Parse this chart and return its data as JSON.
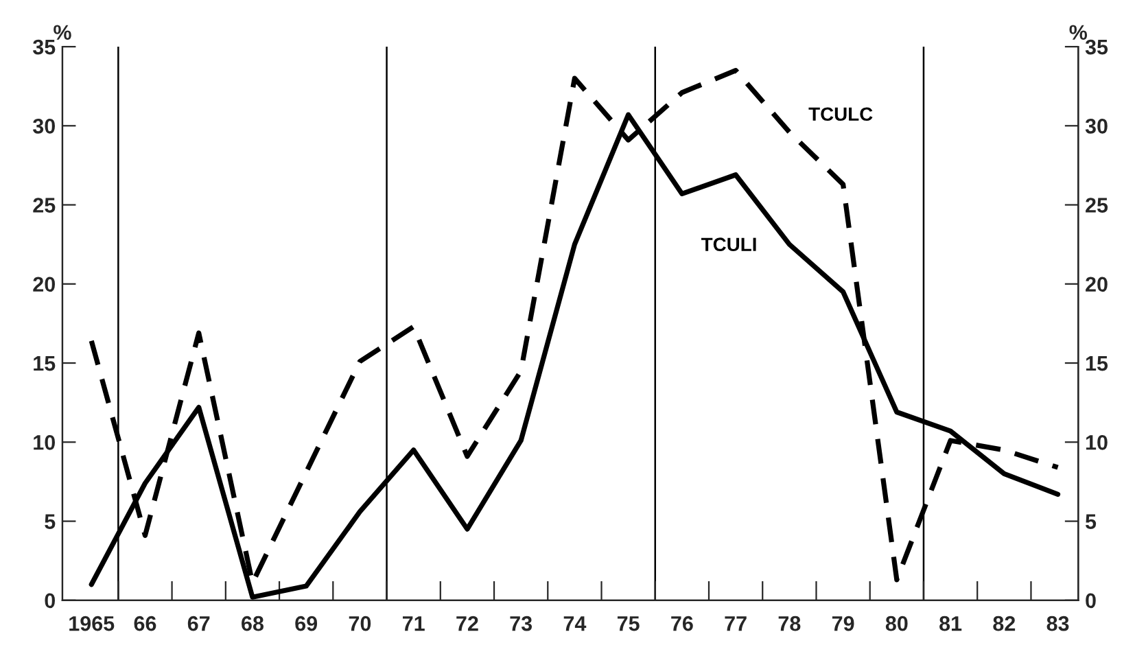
{
  "chart_data": {
    "type": "line",
    "ylabel": "%",
    "y2label": "%",
    "x": [
      1965,
      1966,
      1967,
      1968,
      1969,
      1970,
      1971,
      1972,
      1973,
      1974,
      1975,
      1976,
      1977,
      1978,
      1979,
      1980,
      1981,
      1982,
      1983
    ],
    "series": [
      {
        "name": "TCULI",
        "color": "#000000",
        "line_style": "solid",
        "values": [
          1.0,
          7.4,
          12.2,
          0.2,
          0.9,
          5.6,
          9.5,
          4.5,
          10.1,
          22.5,
          30.7,
          25.7,
          26.9,
          22.5,
          19.5,
          11.9,
          10.7,
          8.0,
          6.7
        ]
      },
      {
        "name": "TCULC",
        "color": "#000000",
        "line_style": "dashed",
        "values": [
          16.4,
          4.1,
          16.9,
          1.1,
          8.1,
          15.1,
          17.3,
          9.1,
          14.5,
          33.0,
          29.1,
          32.1,
          33.5,
          29.6,
          26.3,
          1.3,
          10.1,
          9.5,
          8.4
        ]
      }
    ],
    "xlim": [
      1964.46,
      1983.38
    ],
    "xticks": [
      {
        "value": 1965,
        "label": "1965"
      },
      {
        "value": 1965.5,
        "label": null
      },
      {
        "value": 1966,
        "label": "66"
      },
      {
        "value": 1966.5,
        "label": null
      },
      {
        "value": 1967,
        "label": "67"
      },
      {
        "value": 1967.5,
        "label": null
      },
      {
        "value": 1968,
        "label": "68"
      },
      {
        "value": 1968.5,
        "label": null
      },
      {
        "value": 1969,
        "label": "69"
      },
      {
        "value": 1969.5,
        "label": null
      },
      {
        "value": 1970,
        "label": "70"
      },
      {
        "value": 1970.5,
        "label": null
      },
      {
        "value": 1971,
        "label": "71"
      },
      {
        "value": 1971.5,
        "label": null
      },
      {
        "value": 1972,
        "label": "72"
      },
      {
        "value": 1972.5,
        "label": null
      },
      {
        "value": 1973,
        "label": "73"
      },
      {
        "value": 1973.5,
        "label": null
      },
      {
        "value": 1974,
        "label": "74"
      },
      {
        "value": 1974.5,
        "label": null
      },
      {
        "value": 1975,
        "label": "75"
      },
      {
        "value": 1975.5,
        "label": null
      },
      {
        "value": 1976,
        "label": "76"
      },
      {
        "value": 1976.5,
        "label": null
      },
      {
        "value": 1977,
        "label": "77"
      },
      {
        "value": 1977.5,
        "label": null
      },
      {
        "value": 1978,
        "label": "78"
      },
      {
        "value": 1978.5,
        "label": null
      },
      {
        "value": 1979,
        "label": "79"
      },
      {
        "value": 1979.5,
        "label": null
      },
      {
        "value": 1980,
        "label": "80"
      },
      {
        "value": 1980.5,
        "label": null
      },
      {
        "value": 1981,
        "label": "81"
      },
      {
        "value": 1981.5,
        "label": null
      },
      {
        "value": 1982,
        "label": "82"
      },
      {
        "value": 1982.5,
        "label": null
      },
      {
        "value": 1983,
        "label": "83"
      }
    ],
    "ylim": [
      0,
      35
    ],
    "yticks": [
      0,
      5,
      10,
      15,
      20,
      25,
      30,
      35
    ],
    "y2lim": [
      0,
      35
    ],
    "y2ticks": [
      0,
      5,
      10,
      15,
      20,
      25,
      30,
      35
    ],
    "ref_lines": [
      {
        "axis": "x",
        "value": 1965.5,
        "color": "#000000"
      },
      {
        "axis": "x",
        "value": 1970.5,
        "color": "#000000"
      },
      {
        "axis": "x",
        "value": 1975.5,
        "color": "#000000"
      },
      {
        "axis": "x",
        "value": 1980.5,
        "color": "#000000"
      }
    ],
    "grid": false,
    "legend": false
  }
}
